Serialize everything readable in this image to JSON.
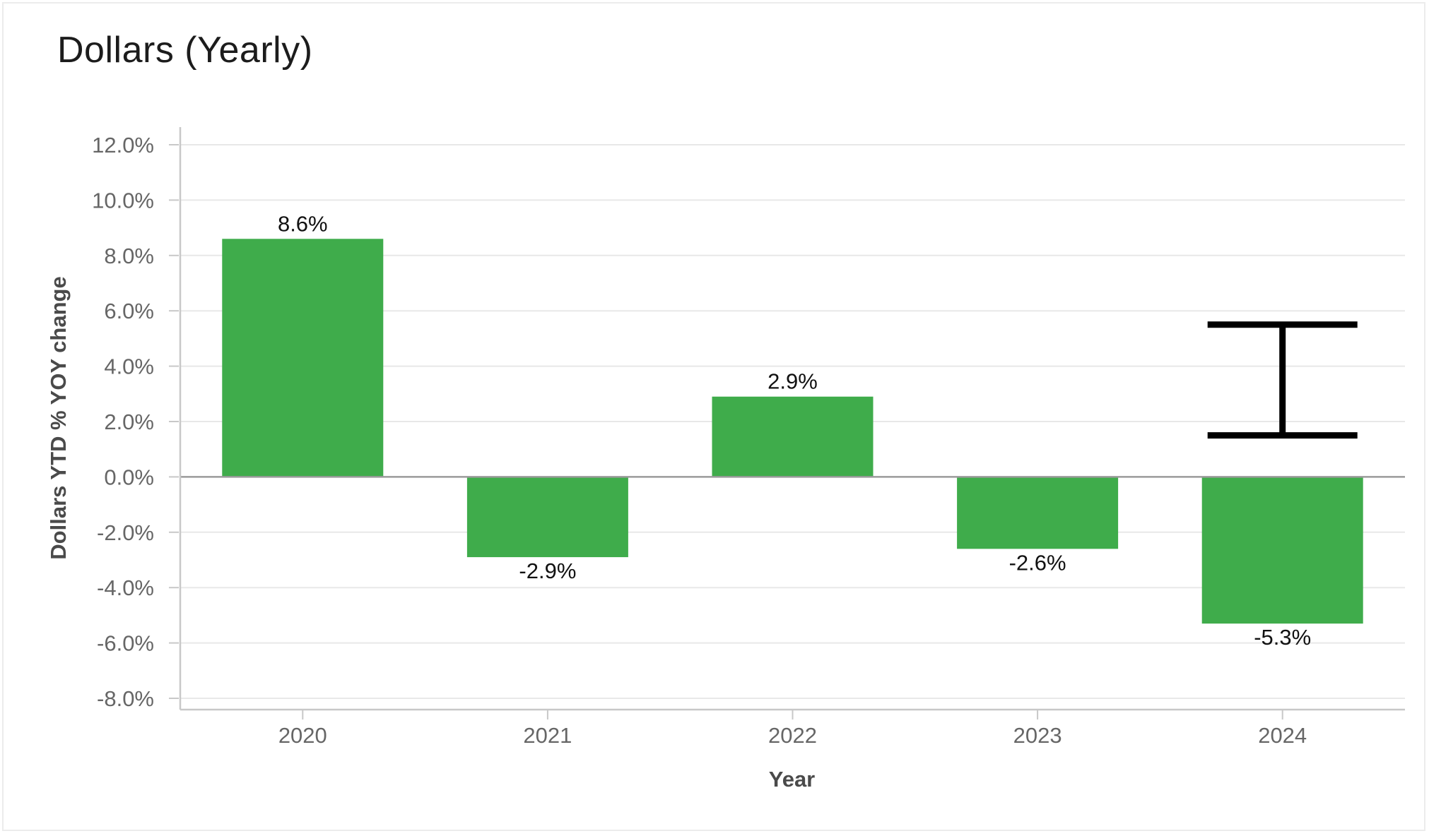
{
  "title": "Dollars (Yearly)",
  "chart_data": {
    "type": "bar",
    "title": "Dollars (Yearly)",
    "xlabel": "Year",
    "ylabel": "Dollars YTD % YOY change",
    "categories": [
      "2020",
      "2021",
      "2022",
      "2023",
      "2024"
    ],
    "values": [
      8.6,
      -2.9,
      2.9,
      -2.6,
      -5.3
    ],
    "data_labels": [
      "8.6%",
      "-2.9%",
      "2.9%",
      "-2.6%",
      "-5.3%"
    ],
    "error_bar": {
      "category": "2024",
      "low": 1.5,
      "high": 5.5
    },
    "ylim": [
      -8,
      12
    ],
    "yticks": [
      12,
      10,
      8,
      6,
      4,
      2,
      0,
      -2,
      -4,
      -6,
      -8
    ],
    "ytick_labels": [
      "12.0%",
      "10.0%",
      "8.0%",
      "6.0%",
      "4.0%",
      "2.0%",
      "0.0%",
      "-2.0%",
      "-4.0%",
      "-6.0%",
      "-8.0%"
    ],
    "grid": true,
    "legend": "none",
    "colors": {
      "bar": "#3fac4b",
      "error_bar": "#000000",
      "grid": "#e8e8e8",
      "axis": "#c8c8c8",
      "zero_line": "#9a9a9a"
    }
  }
}
